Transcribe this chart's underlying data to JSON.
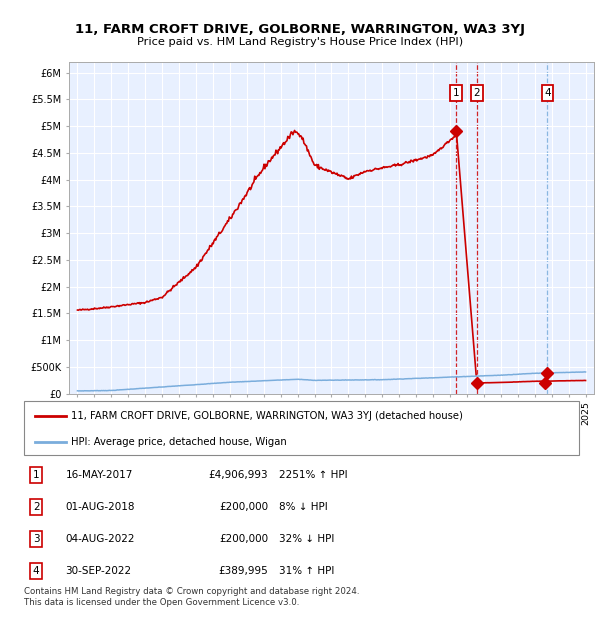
{
  "title": "11, FARM CROFT DRIVE, GOLBORNE, WARRINGTON, WA3 3YJ",
  "subtitle": "Price paid vs. HM Land Registry's House Price Index (HPI)",
  "footnote": "Contains HM Land Registry data © Crown copyright and database right 2024.\nThis data is licensed under the Open Government Licence v3.0.",
  "legend_property": "11, FARM CROFT DRIVE, GOLBORNE, WARRINGTON, WA3 3YJ (detached house)",
  "legend_hpi": "HPI: Average price, detached house, Wigan",
  "table_rows": [
    [
      1,
      "16-MAY-2017",
      "£4,906,993",
      "2251% ↑ HPI"
    ],
    [
      2,
      "01-AUG-2018",
      "£200,000",
      "8% ↓ HPI"
    ],
    [
      3,
      "04-AUG-2022",
      "£200,000",
      "32% ↓ HPI"
    ],
    [
      4,
      "30-SEP-2022",
      "£389,995",
      "31% ↑ HPI"
    ]
  ],
  "ylim": [
    0,
    6200000
  ],
  "xlim": [
    1994.5,
    2025.5
  ],
  "yticks": [
    0,
    500000,
    1000000,
    1500000,
    2000000,
    2500000,
    3000000,
    3500000,
    4000000,
    4500000,
    5000000,
    5500000,
    6000000
  ],
  "ytick_labels": [
    "£0",
    "£500K",
    "£1M",
    "£1.5M",
    "£2M",
    "£2.5M",
    "£3M",
    "£3.5M",
    "£4M",
    "£4.5M",
    "£5M",
    "£5.5M",
    "£6M"
  ],
  "property_color": "#cc0000",
  "hpi_color": "#7aaddc",
  "background_color": "#e8f0ff",
  "t1_x": 2017.37,
  "t1_y": 4906993,
  "t2_x": 2018.58,
  "t2_y": 200000,
  "t3_x": 2022.58,
  "t3_y": 200000,
  "t4_x": 2022.75,
  "t4_y": 389995
}
